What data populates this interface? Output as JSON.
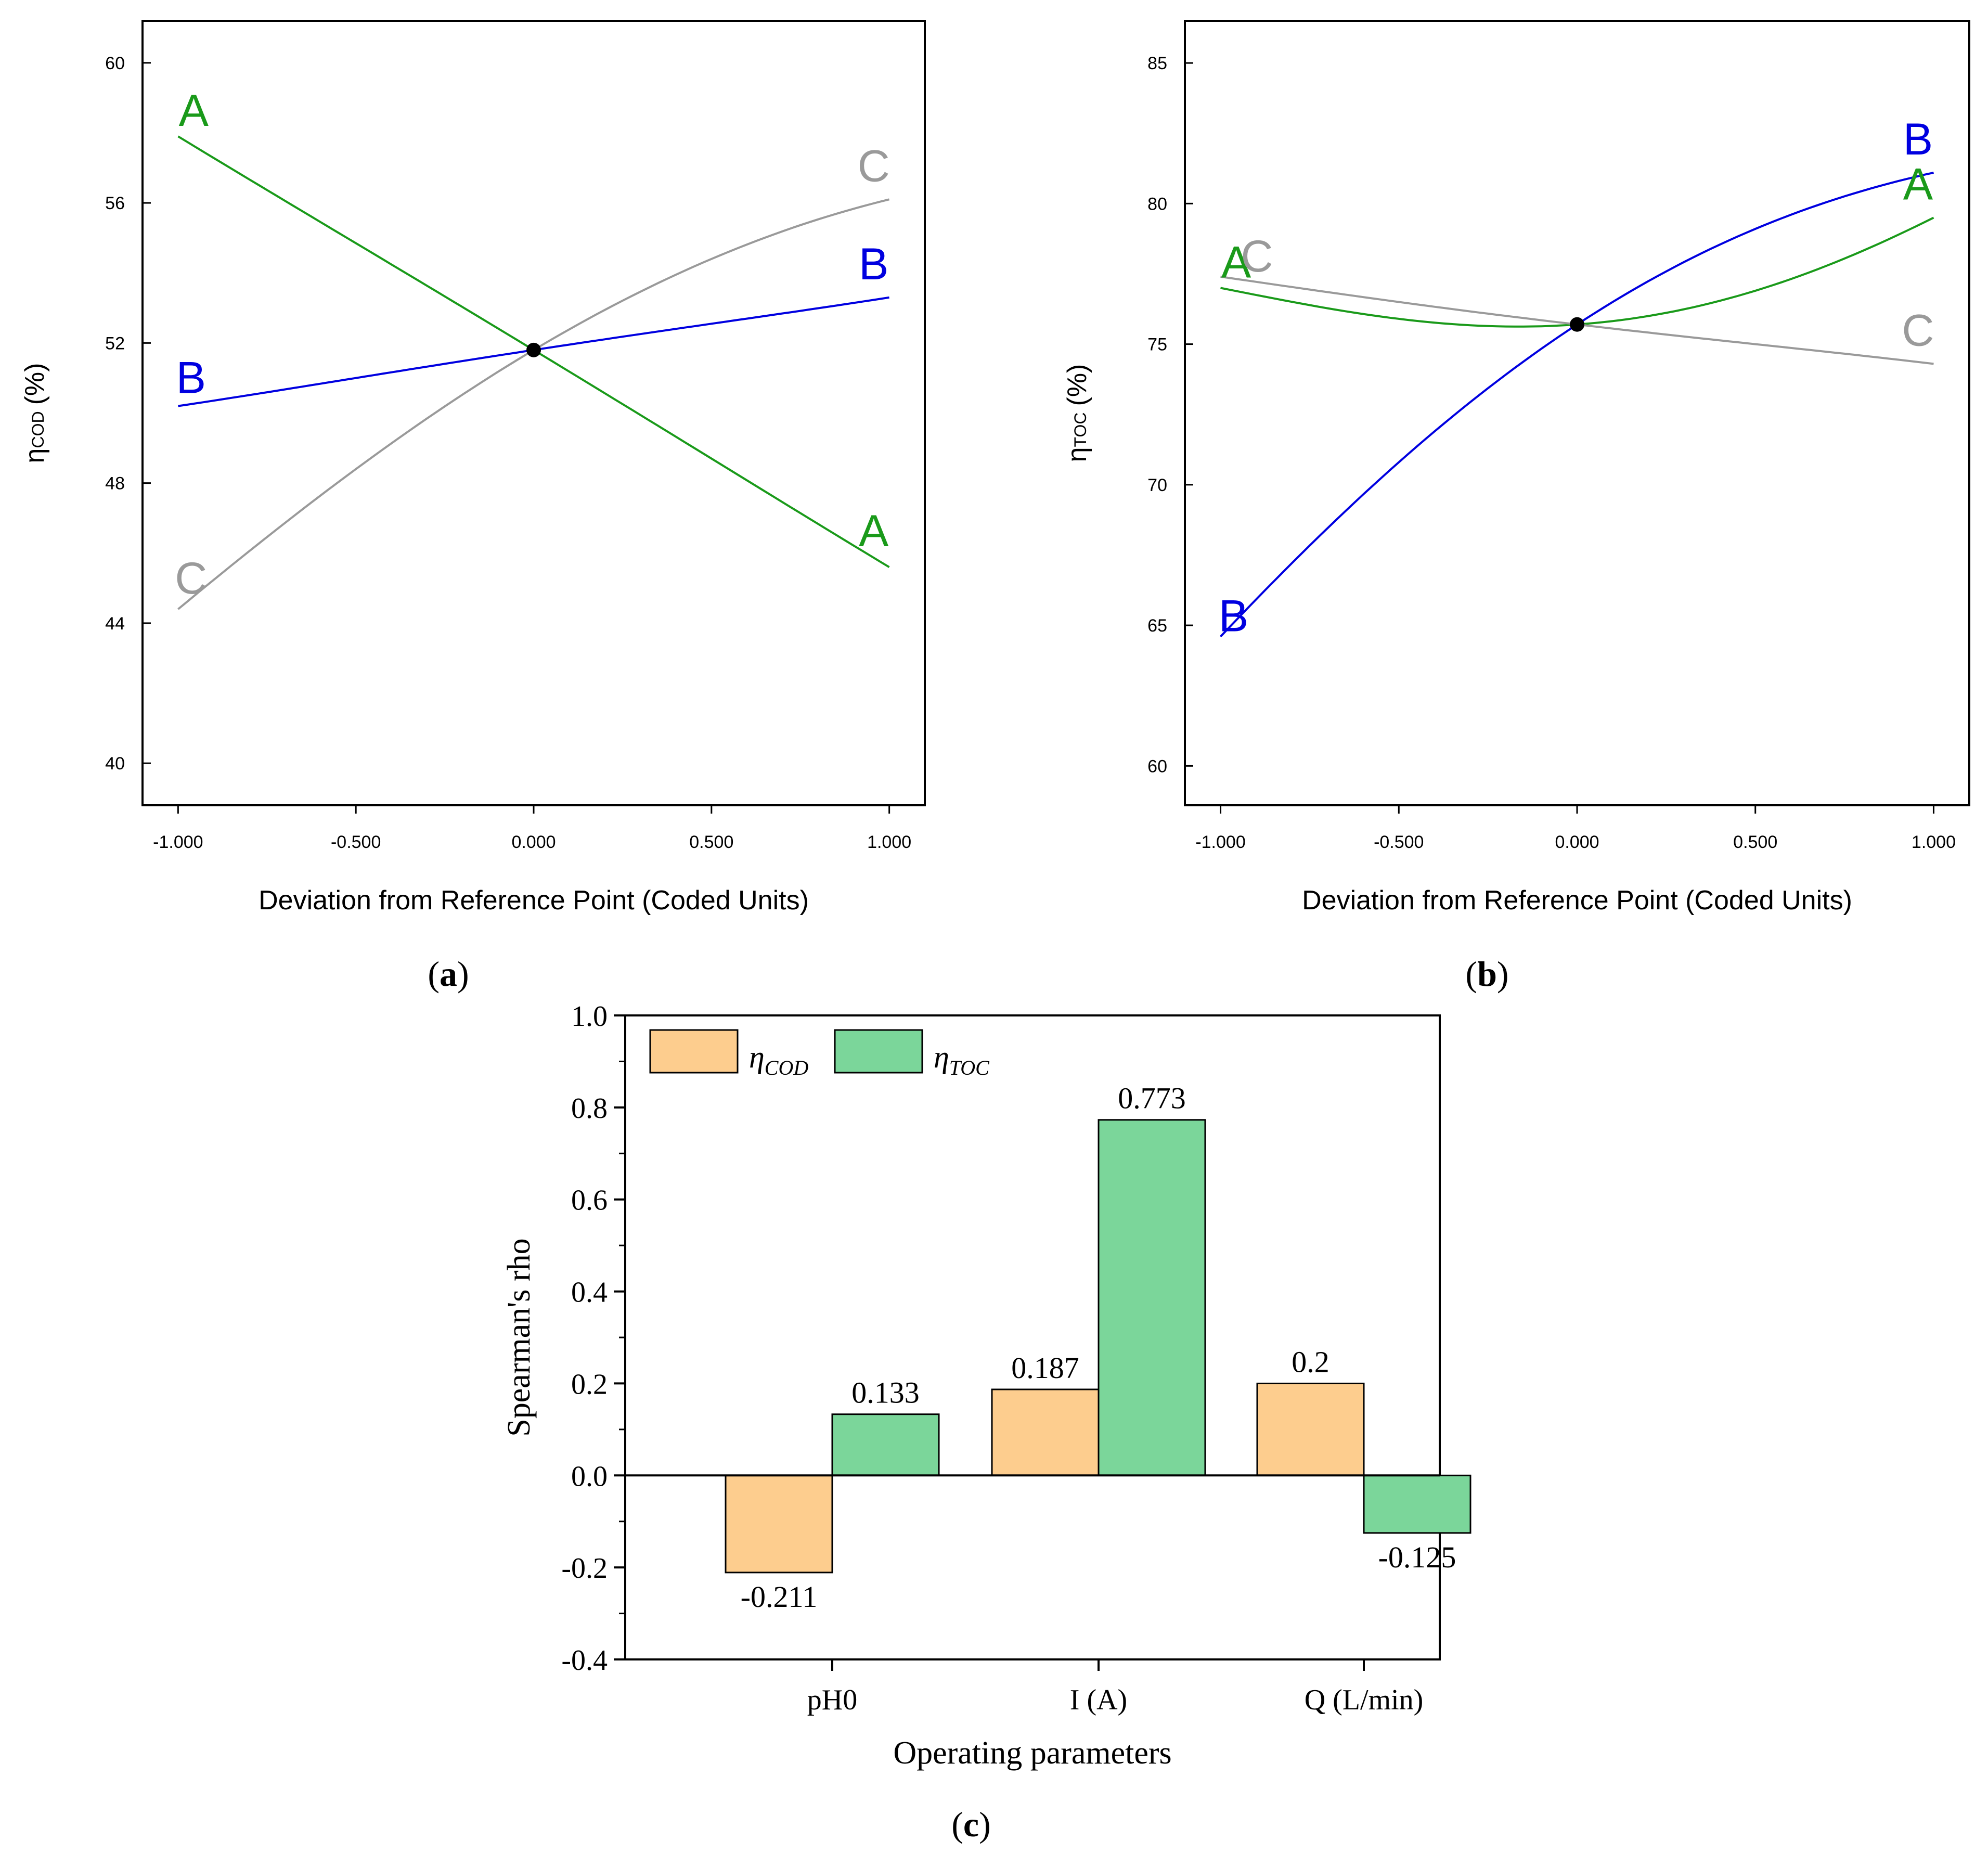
{
  "colors": {
    "factor_a": "#1a9a1a",
    "factor_b": "#0000e0",
    "factor_c": "#9a9a9a",
    "bar_cod": "#fdcd8e",
    "bar_toc": "#7bd69a",
    "axis": "#000000"
  },
  "panels": {
    "a": {
      "caption_letter": "a"
    },
    "b": {
      "caption_letter": "b"
    },
    "c": {
      "caption_letter": "c"
    }
  },
  "chart_data": [
    {
      "id": "a",
      "type": "line",
      "title": "",
      "xlabel": "Deviation from Reference Point (Coded Units)",
      "ylabel_main": "η",
      "ylabel_sub": "COD",
      "ylabel_unit": "(%)",
      "xlim": [
        -1.1,
        1.1
      ],
      "ylim": [
        38.8,
        61.2
      ],
      "xticks": [
        -1,
        -0.5,
        0,
        0.5,
        1
      ],
      "xtick_labels": [
        "-1.000",
        "-0.500",
        "0.000",
        "0.500",
        "1.000"
      ],
      "yticks": [
        40,
        44,
        48,
        52,
        56,
        60
      ],
      "ytick_labels": [
        "40",
        "44",
        "48",
        "52",
        "56",
        "60"
      ],
      "reference_point": {
        "x": 0,
        "y": 51.8
      },
      "series": [
        {
          "name": "A",
          "color": "#1a9a1a",
          "label_left": "A",
          "label_right": "A",
          "x": [
            -1,
            -0.5,
            0,
            0.5,
            1
          ],
          "y": [
            57.9,
            54.85,
            51.8,
            48.7,
            45.6
          ]
        },
        {
          "name": "B",
          "color": "#0000e0",
          "label_left": "B",
          "label_right": "B",
          "x": [
            -1,
            -0.5,
            0,
            0.5,
            1
          ],
          "y": [
            50.2,
            51.0,
            51.8,
            52.55,
            53.3
          ]
        },
        {
          "name": "C",
          "color": "#9a9a9a",
          "label_left": "C",
          "label_right": "C",
          "x": [
            -1,
            -0.5,
            0,
            0.5,
            1
          ],
          "y": [
            44.4,
            48.4,
            51.8,
            54.4,
            56.1
          ]
        }
      ]
    },
    {
      "id": "b",
      "type": "line",
      "title": "",
      "xlabel": "Deviation from Reference Point (Coded Units)",
      "ylabel_main": "η",
      "ylabel_sub": "TOC",
      "ylabel_unit": "(%)",
      "xlim": [
        -1.1,
        1.1
      ],
      "ylim": [
        58.6,
        86.5
      ],
      "xticks": [
        -1,
        -0.5,
        0,
        0.5,
        1
      ],
      "xtick_labels": [
        "-1.000",
        "-0.500",
        "0.000",
        "0.500",
        "1.000"
      ],
      "yticks": [
        60,
        65,
        70,
        75,
        80,
        85
      ],
      "ytick_labels": [
        "60",
        "65",
        "70",
        "75",
        "80",
        "85"
      ],
      "reference_point": {
        "x": 0,
        "y": 75.7
      },
      "series": [
        {
          "name": "A",
          "color": "#1a9a1a",
          "label_left": "A",
          "label_right": "A",
          "x": [
            -1,
            -0.5,
            0,
            0.5,
            1
          ],
          "y": [
            77.0,
            75.9,
            75.7,
            76.9,
            79.5
          ]
        },
        {
          "name": "B",
          "color": "#0000e0",
          "label_left": "B",
          "label_right": "B",
          "x": [
            -1,
            -0.5,
            0,
            0.5,
            1
          ],
          "y": [
            64.6,
            70.8,
            75.7,
            79.1,
            81.1
          ]
        },
        {
          "name": "C",
          "color": "#9a9a9a",
          "label_left": "C",
          "label_right": "C",
          "x": [
            -1,
            -0.5,
            0,
            0.5,
            1
          ],
          "y": [
            77.4,
            76.5,
            75.7,
            75.0,
            74.3
          ]
        }
      ]
    },
    {
      "id": "c",
      "type": "bar",
      "title": "",
      "xlabel": "Operating parameters",
      "ylabel": "Spearman's rho",
      "ylim": [
        -0.4,
        1.0
      ],
      "yticks": [
        -0.4,
        -0.2,
        0.0,
        0.2,
        0.4,
        0.6,
        0.8,
        1.0
      ],
      "ytick_labels": [
        "-0.4",
        "-0.2",
        "0.0",
        "0.2",
        "0.4",
        "0.6",
        "0.8",
        "1.0"
      ],
      "categories": [
        "pH0",
        "I (A)",
        "Q (L/min)"
      ],
      "legend_position": "top-left",
      "series": [
        {
          "name": "η",
          "name_sub": "COD",
          "color": "#fdcd8e",
          "values": [
            -0.211,
            0.187,
            0.2
          ],
          "labels": [
            "-0.211",
            "0.187",
            "0.2"
          ]
        },
        {
          "name": "η",
          "name_sub": "TOC",
          "color": "#7bd69a",
          "values": [
            0.133,
            0.773,
            -0.125
          ],
          "labels": [
            "0.133",
            "0.773",
            "-0.125"
          ]
        }
      ]
    }
  ]
}
